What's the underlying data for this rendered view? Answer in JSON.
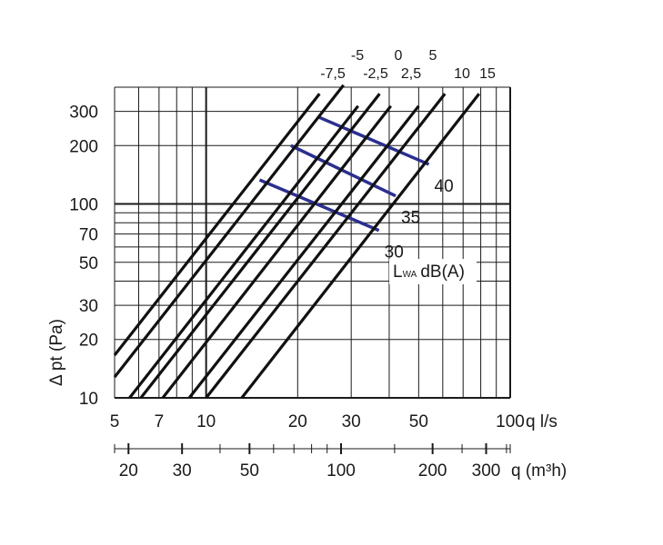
{
  "chart_data": {
    "type": "line",
    "x_scale": "log",
    "y_scale": "log",
    "xlim": [
      5,
      100
    ],
    "ylim": [
      10,
      400
    ],
    "grid": true,
    "x_unit_label": "q l/s",
    "x2_unit_label": "q (m³h)",
    "y_label": "Δ pt (Pa)",
    "y_ticks": [
      {
        "value": 10,
        "label": "10"
      },
      {
        "value": 20,
        "label": "20"
      },
      {
        "value": 30,
        "label": "30"
      },
      {
        "value": 50,
        "label": "50"
      },
      {
        "value": 70,
        "label": "70"
      },
      {
        "value": 100,
        "label": "100"
      },
      {
        "value": 200,
        "label": "200"
      },
      {
        "value": 300,
        "label": "300"
      }
    ],
    "x_ticks": [
      {
        "value": 5,
        "label": "5"
      },
      {
        "value": 7,
        "label": "7"
      },
      {
        "value": 10,
        "label": "10"
      },
      {
        "value": 20,
        "label": "20"
      },
      {
        "value": 30,
        "label": "30"
      },
      {
        "value": 50,
        "label": "50"
      },
      {
        "value": 100,
        "label": "100"
      }
    ],
    "x2_ticks": [
      {
        "value": 20,
        "label": "20"
      },
      {
        "value": 30,
        "label": "30"
      },
      {
        "value": 50,
        "label": "50"
      },
      {
        "value": 100,
        "label": "100"
      },
      {
        "value": 200,
        "label": "200"
      },
      {
        "value": 300,
        "label": "300"
      }
    ],
    "x2_minor": [
      40,
      60,
      70,
      80,
      90,
      150,
      250,
      350
    ],
    "series": [
      {
        "name": "-7,5",
        "x": [
          5,
          23.6
        ],
        "y": [
          16.6,
          370
        ]
      },
      {
        "name": "-5",
        "x": [
          5,
          28.3
        ],
        "y": [
          12.8,
          410
        ]
      },
      {
        "name": "-2,5",
        "x": [
          5.6,
          31.6
        ],
        "y": [
          10,
          320
        ]
      },
      {
        "name": "0",
        "x": [
          6.1,
          37.2
        ],
        "y": [
          10,
          370
        ]
      },
      {
        "name": "2,5",
        "x": [
          7.2,
          40.5
        ],
        "y": [
          10,
          320
        ]
      },
      {
        "name": "5",
        "x": [
          8.8,
          50
        ],
        "y": [
          10,
          320
        ]
      },
      {
        "name": "10",
        "x": [
          10,
          61
        ],
        "y": [
          10,
          370
        ]
      },
      {
        "name": "15",
        "x": [
          13.1,
          79
        ],
        "y": [
          10,
          370
        ]
      }
    ],
    "sound_levels": [
      {
        "label": "30",
        "x": [
          15,
          37
        ],
        "y": [
          133,
          73
        ]
      },
      {
        "label": "35",
        "x": [
          19,
          42
        ],
        "y": [
          200,
          110
        ]
      },
      {
        "label": "40",
        "x": [
          23.5,
          54
        ],
        "y": [
          280,
          160
        ]
      }
    ],
    "sound_legend": {
      "prefix": "L",
      "subscript": "WA",
      "suffix": "dB(A)"
    }
  }
}
